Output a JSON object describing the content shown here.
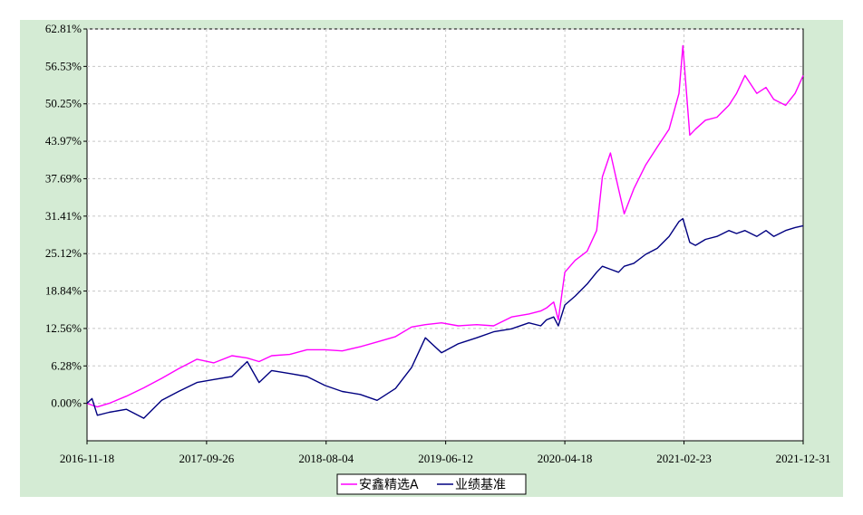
{
  "chart_data": {
    "type": "line",
    "x_ticks": [
      "2016-11-18",
      "2017-09-26",
      "2018-08-04",
      "2019-06-12",
      "2020-04-18",
      "2021-02-23",
      "2021-12-31"
    ],
    "y_ticks": [
      "62.81%",
      "56.53%",
      "50.25%",
      "43.97%",
      "37.69%",
      "31.41%",
      "25.12%",
      "18.84%",
      "12.56%",
      "6.28%",
      "0.00%"
    ],
    "ylim": [
      -6.28,
      62.81
    ],
    "xlim": [
      "2016-11-18",
      "2021-12-31"
    ],
    "grid": true,
    "legend_position": "bottom-center",
    "series": [
      {
        "name": "安鑫精选A",
        "color": "#ff00ff",
        "x": [
          "2016-11-18",
          "2016-12-01",
          "2016-12-15",
          "2017-01-15",
          "2017-03-01",
          "2017-04-15",
          "2017-06-01",
          "2017-07-15",
          "2017-09-01",
          "2017-10-15",
          "2017-12-01",
          "2018-01-10",
          "2018-02-10",
          "2018-03-15",
          "2018-05-01",
          "2018-06-15",
          "2018-08-01",
          "2018-09-15",
          "2018-11-01",
          "2018-12-15",
          "2019-02-01",
          "2019-03-15",
          "2019-04-20",
          "2019-06-01",
          "2019-07-15",
          "2019-09-01",
          "2019-10-15",
          "2019-12-01",
          "2020-01-15",
          "2020-02-15",
          "2020-03-01",
          "2020-03-20",
          "2020-04-01",
          "2020-04-18",
          "2020-05-15",
          "2020-06-15",
          "2020-07-10",
          "2020-07-25",
          "2020-08-15",
          "2020-09-05",
          "2020-09-20",
          "2020-10-15",
          "2020-11-15",
          "2020-12-15",
          "2021-01-15",
          "2021-02-10",
          "2021-02-20",
          "2021-03-10",
          "2021-03-25",
          "2021-04-20",
          "2021-05-20",
          "2021-06-20",
          "2021-07-10",
          "2021-08-01",
          "2021-09-01",
          "2021-09-25",
          "2021-10-15",
          "2021-11-15",
          "2021-12-10",
          "2021-12-31"
        ],
        "values": [
          0.0,
          -0.3,
          -0.6,
          0.0,
          1.2,
          2.6,
          4.2,
          5.8,
          7.4,
          6.8,
          8.0,
          7.6,
          7.0,
          8.0,
          8.2,
          9.0,
          9.0,
          8.8,
          9.5,
          10.3,
          11.2,
          12.8,
          13.2,
          13.5,
          13.0,
          13.2,
          13.0,
          14.5,
          15.0,
          15.5,
          16.0,
          17.0,
          14.0,
          22.0,
          24.0,
          25.5,
          29.0,
          38.0,
          42.0,
          36.0,
          31.8,
          36.0,
          40.0,
          43.0,
          46.0,
          52.0,
          60.0,
          45.0,
          46.0,
          47.5,
          48.0,
          50.0,
          52.0,
          55.0,
          52.0,
          53.0,
          51.0,
          50.0,
          52.0,
          55.0
        ]
      },
      {
        "name": "业绩基准",
        "color": "#000080",
        "x": [
          "2016-11-18",
          "2016-12-01",
          "2016-12-15",
          "2017-01-15",
          "2017-03-01",
          "2017-04-15",
          "2017-06-01",
          "2017-07-15",
          "2017-09-01",
          "2017-10-15",
          "2017-12-01",
          "2018-01-10",
          "2018-02-10",
          "2018-03-15",
          "2018-05-01",
          "2018-06-15",
          "2018-08-01",
          "2018-09-15",
          "2018-11-01",
          "2018-12-15",
          "2019-02-01",
          "2019-03-15",
          "2019-04-20",
          "2019-06-01",
          "2019-07-15",
          "2019-09-01",
          "2019-10-15",
          "2019-12-01",
          "2020-01-15",
          "2020-02-15",
          "2020-03-01",
          "2020-03-20",
          "2020-04-01",
          "2020-04-18",
          "2020-05-15",
          "2020-06-15",
          "2020-07-10",
          "2020-07-25",
          "2020-08-15",
          "2020-09-05",
          "2020-09-20",
          "2020-10-15",
          "2020-11-15",
          "2020-12-15",
          "2021-01-15",
          "2021-02-10",
          "2021-02-20",
          "2021-03-10",
          "2021-03-25",
          "2021-04-20",
          "2021-05-20",
          "2021-06-20",
          "2021-07-10",
          "2021-08-01",
          "2021-09-01",
          "2021-09-25",
          "2021-10-15",
          "2021-11-15",
          "2021-12-10",
          "2021-12-31"
        ],
        "values": [
          0.0,
          0.8,
          -2.0,
          -1.5,
          -1.0,
          -2.5,
          0.5,
          2.0,
          3.5,
          4.0,
          4.5,
          7.0,
          3.5,
          5.5,
          5.0,
          4.5,
          3.0,
          2.0,
          1.5,
          0.5,
          2.5,
          6.0,
          11.0,
          8.5,
          10.0,
          11.0,
          12.0,
          12.5,
          13.5,
          13.0,
          14.0,
          14.5,
          13.0,
          16.5,
          18.0,
          20.0,
          22.0,
          23.0,
          22.5,
          22.0,
          23.0,
          23.5,
          25.0,
          26.0,
          28.0,
          30.5,
          31.0,
          27.0,
          26.5,
          27.5,
          28.0,
          29.0,
          28.5,
          29.0,
          28.0,
          29.0,
          28.0,
          29.0,
          29.5,
          29.8
        ]
      }
    ]
  }
}
